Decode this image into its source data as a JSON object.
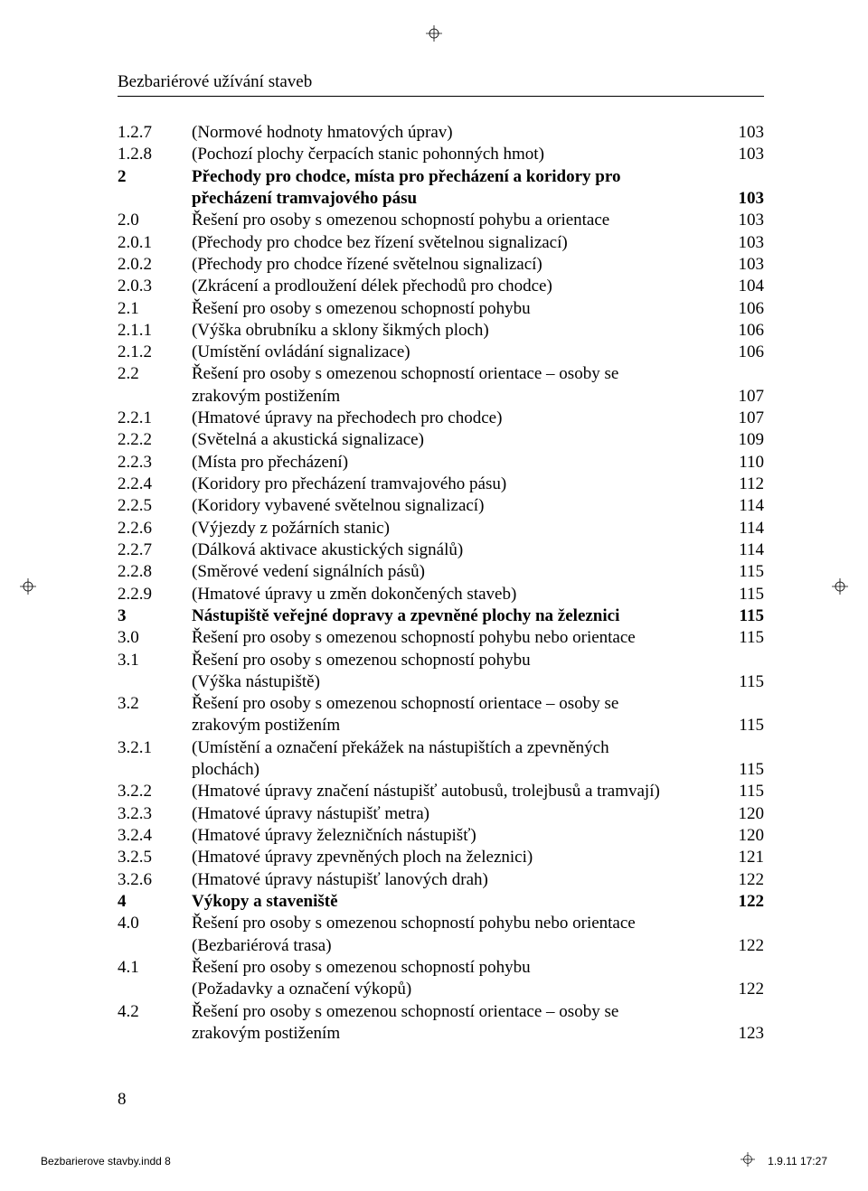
{
  "header": "Bezbariérové užívání staveb",
  "page_number": "8",
  "footer": {
    "left": "Bezbarierove stavby.indd   8",
    "right": "1.9.11   17:27"
  },
  "toc": [
    {
      "num": "1.2.7",
      "title": "(Normové hodnoty hmatových úprav)",
      "page": "103",
      "bold": false
    },
    {
      "num": "1.2.8",
      "title": "(Pochozí plochy čerpacích stanic pohonných hmot)",
      "page": "103",
      "bold": false
    },
    {
      "num": "2",
      "title": "Přechody pro chodce, místa pro přecházení a koridory pro",
      "page": "",
      "bold": true
    },
    {
      "num": "",
      "title": "přecházení tramvajového pásu",
      "page": "103",
      "bold": true
    },
    {
      "num": "2.0",
      "title": "Řešení pro osoby s omezenou schopností pohybu a orientace",
      "page": "103",
      "bold": false
    },
    {
      "num": "2.0.1",
      "title": "(Přechody pro chodce bez řízení světelnou signalizací)",
      "page": "103",
      "bold": false
    },
    {
      "num": "2.0.2",
      "title": "(Přechody pro chodce řízené světelnou signalizací)",
      "page": "103",
      "bold": false
    },
    {
      "num": "2.0.3",
      "title": "(Zkrácení a prodloužení délek přechodů pro chodce)",
      "page": "104",
      "bold": false
    },
    {
      "num": "2.1",
      "title": "Řešení pro osoby s omezenou schopností pohybu",
      "page": "106",
      "bold": false
    },
    {
      "num": "2.1.1",
      "title": "(Výška obrubníku a sklony šikmých ploch)",
      "page": "106",
      "bold": false
    },
    {
      "num": "2.1.2",
      "title": "(Umístění ovládání signalizace)",
      "page": "106",
      "bold": false
    },
    {
      "num": "2.2",
      "title": "Řešení pro osoby s omezenou schopností orientace – osoby se",
      "page": "",
      "bold": false
    },
    {
      "num": "",
      "title": "zrakovým postižením",
      "page": "107",
      "bold": false
    },
    {
      "num": "2.2.1",
      "title": "(Hmatové úpravy na přechodech pro chodce)",
      "page": "107",
      "bold": false
    },
    {
      "num": "2.2.2",
      "title": "(Světelná a akustická signalizace)",
      "page": "109",
      "bold": false
    },
    {
      "num": "2.2.3",
      "title": "(Místa pro přecházení)",
      "page": "110",
      "bold": false
    },
    {
      "num": "2.2.4",
      "title": "(Koridory pro přecházení tramvajového pásu)",
      "page": "112",
      "bold": false
    },
    {
      "num": "2.2.5",
      "title": "(Koridory vybavené světelnou signalizací)",
      "page": "114",
      "bold": false
    },
    {
      "num": "2.2.6",
      "title": "(Výjezdy z požárních stanic)",
      "page": "114",
      "bold": false
    },
    {
      "num": "2.2.7",
      "title": "(Dálková aktivace akustických signálů)",
      "page": "114",
      "bold": false
    },
    {
      "num": "2.2.8",
      "title": "(Směrové vedení signálních pásů)",
      "page": "115",
      "bold": false
    },
    {
      "num": "2.2.9",
      "title": "(Hmatové úpravy u změn dokončených staveb)",
      "page": "115",
      "bold": false
    },
    {
      "num": "3",
      "title": "Nástupiště veřejné dopravy a zpevněné plochy na železnici",
      "page": "115",
      "bold": true
    },
    {
      "num": "3.0",
      "title": "Řešení pro osoby s omezenou schopností pohybu nebo orientace",
      "page": "115",
      "bold": false
    },
    {
      "num": "3.1",
      "title": "Řešení pro osoby s omezenou schopností pohybu",
      "page": "",
      "bold": false
    },
    {
      "num": "",
      "title": "(Výška nástupiště)",
      "page": "115",
      "bold": false
    },
    {
      "num": "3.2",
      "title": "Řešení pro osoby s omezenou schopností orientace – osoby se",
      "page": "",
      "bold": false
    },
    {
      "num": "",
      "title": "zrakovým postižením",
      "page": "115",
      "bold": false
    },
    {
      "num": "3.2.1",
      "title": "(Umístění a označení překážek na nástupištích a zpevněných",
      "page": "",
      "bold": false
    },
    {
      "num": "",
      "title": "plochách)",
      "page": "115",
      "bold": false
    },
    {
      "num": "3.2.2",
      "title": "(Hmatové úpravy značení nástupišť autobusů, trolejbusů a tramvají)",
      "page": "115",
      "bold": false
    },
    {
      "num": "3.2.3",
      "title": "(Hmatové úpravy nástupišť metra)",
      "page": "120",
      "bold": false
    },
    {
      "num": "3.2.4",
      "title": "(Hmatové úpravy železničních nástupišť)",
      "page": "120",
      "bold": false
    },
    {
      "num": "3.2.5",
      "title": "(Hmatové úpravy zpevněných ploch na železnici)",
      "page": "121",
      "bold": false
    },
    {
      "num": "3.2.6",
      "title": "(Hmatové úpravy nástupišť lanových drah)",
      "page": "122",
      "bold": false
    },
    {
      "num": "4",
      "title": "Výkopy a staveniště",
      "page": "122",
      "bold": true
    },
    {
      "num": "4.0",
      "title": "Řešení pro osoby s omezenou schopností pohybu nebo orientace",
      "page": "",
      "bold": false
    },
    {
      "num": "",
      "title": "(Bezbariérová trasa)",
      "page": "122",
      "bold": false
    },
    {
      "num": "4.1",
      "title": "Řešení pro osoby s omezenou schopností pohybu",
      "page": "",
      "bold": false
    },
    {
      "num": "",
      "title": "(Požadavky a označení výkopů)",
      "page": "122",
      "bold": false
    },
    {
      "num": "4.2",
      "title": "Řešení pro osoby s omezenou schopností orientace – osoby se",
      "page": "",
      "bold": false
    },
    {
      "num": "",
      "title": "zrakovým postižením",
      "page": "123",
      "bold": false
    }
  ]
}
